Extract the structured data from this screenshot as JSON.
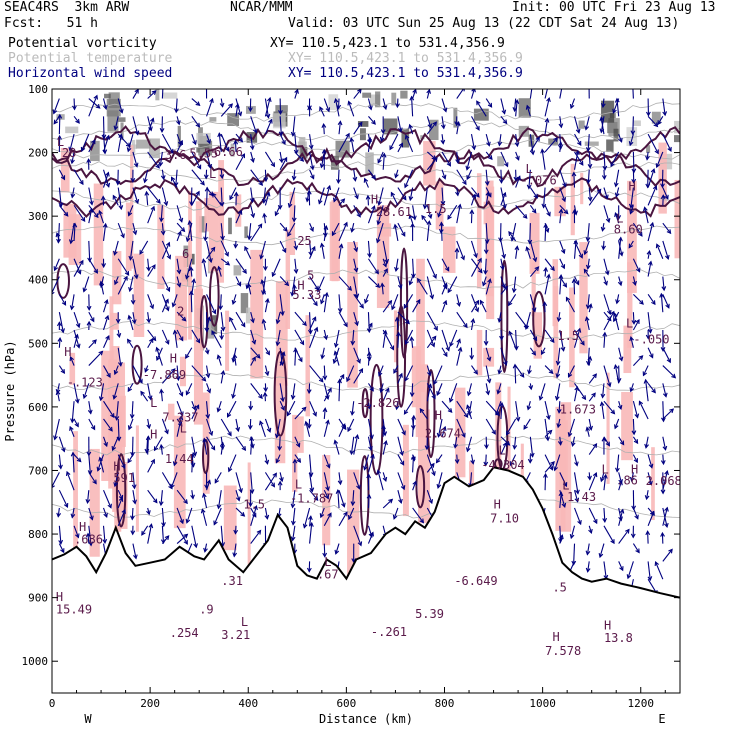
{
  "header": {
    "model": "SEAC4RS  3km ARW",
    "org": "NCAR/MMM",
    "init": "Init: 00 UTC Fri 23 Aug 13",
    "fcst": "Fcst:   51 h",
    "valid": "Valid: 03 UTC Sun 25 Aug 13 (22 CDT Sat 24 Aug 13)"
  },
  "legend": [
    {
      "name": "Potential vorticity",
      "xy": "XY= 110.5,423.1 to 531.4,356.9",
      "color": "#000000"
    },
    {
      "name": "Potential temperature",
      "xy": "XY= 110.5,423.1 to 531.4,356.9",
      "color": "#bbbbbb"
    },
    {
      "name": "Horizontal wind speed",
      "xy": "XY= 110.5,423.1 to 531.4,356.9",
      "color": "#000080"
    }
  ],
  "chart_data": {
    "type": "cross-section",
    "xlabel": "Distance (km)",
    "ylabel": "Pressure (hPa)",
    "xlim": [
      0,
      1280
    ],
    "ylim": [
      100,
      1050
    ],
    "x_ticks": [
      0,
      200,
      400,
      600,
      800,
      1000,
      1200
    ],
    "y_ticks": [
      100,
      200,
      300,
      400,
      500,
      600,
      700,
      800,
      900,
      1000
    ],
    "x_end_labels": {
      "left": "W",
      "right": "E"
    },
    "terrain": [
      [
        0,
        840
      ],
      [
        25,
        832
      ],
      [
        50,
        820
      ],
      [
        70,
        835
      ],
      [
        90,
        860
      ],
      [
        110,
        830
      ],
      [
        130,
        790
      ],
      [
        150,
        830
      ],
      [
        170,
        850
      ],
      [
        200,
        845
      ],
      [
        230,
        840
      ],
      [
        260,
        820
      ],
      [
        290,
        835
      ],
      [
        310,
        840
      ],
      [
        340,
        810
      ],
      [
        360,
        840
      ],
      [
        390,
        860
      ],
      [
        420,
        830
      ],
      [
        440,
        810
      ],
      [
        460,
        770
      ],
      [
        480,
        790
      ],
      [
        500,
        850
      ],
      [
        520,
        865
      ],
      [
        540,
        870
      ],
      [
        560,
        840
      ],
      [
        580,
        850
      ],
      [
        600,
        870
      ],
      [
        620,
        840
      ],
      [
        650,
        830
      ],
      [
        680,
        800
      ],
      [
        700,
        790
      ],
      [
        720,
        800
      ],
      [
        740,
        780
      ],
      [
        760,
        790
      ],
      [
        780,
        765
      ],
      [
        800,
        720
      ],
      [
        820,
        710
      ],
      [
        850,
        725
      ],
      [
        880,
        715
      ],
      [
        900,
        695
      ],
      [
        930,
        700
      ],
      [
        960,
        710
      ],
      [
        980,
        730
      ],
      [
        1000,
        760
      ],
      [
        1020,
        800
      ],
      [
        1040,
        845
      ],
      [
        1060,
        860
      ],
      [
        1080,
        870
      ],
      [
        1100,
        875
      ],
      [
        1130,
        870
      ],
      [
        1160,
        878
      ],
      [
        1200,
        885
      ],
      [
        1240,
        893
      ],
      [
        1280,
        900
      ]
    ],
    "annotations": [
      {
        "text": "L",
        "x": 10,
        "y": 190,
        "color": "#5a1a4a"
      },
      {
        "text": "28",
        "x": 20,
        "y": 207,
        "color": "#5a1a4a"
      },
      {
        "text": "3.6",
        "x": 230,
        "y": 210,
        "color": "#5a1a4a"
      },
      {
        "text": "5.55",
        "x": 280,
        "y": 208,
        "color": "#5a1a4a"
      },
      {
        "text": "6.66",
        "x": 330,
        "y": 205,
        "color": "#5a1a4a"
      },
      {
        "text": "L",
        "x": 320,
        "y": 240,
        "color": "#5a1a4a"
      },
      {
        "text": "H",
        "x": 650,
        "y": 280,
        "color": "#5a1a4a"
      },
      {
        "text": "28.61",
        "x": 660,
        "y": 300,
        "color": "#5a1a4a"
      },
      {
        "text": "1.5",
        "x": 760,
        "y": 295,
        "color": "#5a1a4a"
      },
      {
        "text": "L",
        "x": 965,
        "y": 232,
        "color": "#5a1a4a"
      },
      {
        "text": "-.076",
        "x": 955,
        "y": 250,
        "color": "#5a1a4a"
      },
      {
        "text": "H",
        "x": 1175,
        "y": 260,
        "color": "#5a1a4a"
      },
      {
        "text": "L",
        "x": 1150,
        "y": 310,
        "color": "#5a1a4a"
      },
      {
        "text": "8.60",
        "x": 1145,
        "y": 327,
        "color": "#5a1a4a"
      },
      {
        "text": "25",
        "x": 500,
        "y": 345,
        "color": "#5a1a4a"
      },
      {
        "text": "6",
        "x": 265,
        "y": 366,
        "color": "#5a1a4a"
      },
      {
        "text": "5",
        "x": 520,
        "y": 400,
        "color": "#5a1a4a"
      },
      {
        "text": "H",
        "x": 500,
        "y": 415,
        "color": "#5a1a4a"
      },
      {
        "text": "5.33",
        "x": 490,
        "y": 430,
        "color": "#5a1a4a"
      },
      {
        "text": "2",
        "x": 255,
        "y": 456,
        "color": "#5a1a4a"
      },
      {
        "text": "H",
        "x": 25,
        "y": 520,
        "color": "#5a1a4a"
      },
      {
        "text": "-7.869",
        "x": 185,
        "y": 556,
        "color": "#5a1a4a"
      },
      {
        "text": "-.123",
        "x": 30,
        "y": 568,
        "color": "#5a1a4a"
      },
      {
        "text": "H",
        "x": 240,
        "y": 530,
        "color": "#5a1a4a"
      },
      {
        "text": "L",
        "x": 1170,
        "y": 475,
        "color": "#5a1a4a"
      },
      {
        "text": "-.050",
        "x": 1185,
        "y": 500,
        "color": "#5a1a4a"
      },
      {
        "text": "1.5",
        "x": 1030,
        "y": 495,
        "color": "#5a1a4a"
      },
      {
        "text": "L",
        "x": 200,
        "y": 600,
        "color": "#5a1a4a"
      },
      {
        "text": "7.237",
        "x": 225,
        "y": 623,
        "color": "#5a1a4a"
      },
      {
        "text": "-2.826",
        "x": 620,
        "y": 600,
        "color": "#5a1a4a"
      },
      {
        "text": "1.673",
        "x": 1035,
        "y": 610,
        "color": "#5a1a4a"
      },
      {
        "text": "H",
        "x": 780,
        "y": 620,
        "color": "#5a1a4a"
      },
      {
        "text": "2.674",
        "x": 760,
        "y": 648,
        "color": "#5a1a4a"
      },
      {
        "text": "H",
        "x": 200,
        "y": 650,
        "color": "#5a1a4a"
      },
      {
        "text": "L",
        "x": 260,
        "y": 640,
        "color": "#5a1a4a"
      },
      {
        "text": "1.44",
        "x": 230,
        "y": 688,
        "color": "#5a1a4a"
      },
      {
        "text": "L",
        "x": 910,
        "y": 675,
        "color": "#5a1a4a"
      },
      {
        "text": "-4.304",
        "x": 875,
        "y": 698,
        "color": "#5a1a4a"
      },
      {
        "text": "H",
        "x": 125,
        "y": 700,
        "color": "#5a1a4a"
      },
      {
        "text": "591",
        "x": 125,
        "y": 718,
        "color": "#5a1a4a"
      },
      {
        "text": "L",
        "x": 1120,
        "y": 705,
        "color": "#5a1a4a"
      },
      {
        "text": "H",
        "x": 1180,
        "y": 705,
        "color": "#5a1a4a"
      },
      {
        "text": ".86",
        "x": 1150,
        "y": 722,
        "color": "#5a1a4a"
      },
      {
        "text": "2.068",
        "x": 1210,
        "y": 723,
        "color": "#5a1a4a"
      },
      {
        "text": "L",
        "x": 1040,
        "y": 730,
        "color": "#5a1a4a"
      },
      {
        "text": "1.43",
        "x": 1050,
        "y": 748,
        "color": "#5a1a4a"
      },
      {
        "text": "L",
        "x": 495,
        "y": 728,
        "color": "#5a1a4a"
      },
      {
        "text": "-1.787",
        "x": 485,
        "y": 750,
        "color": "#5a1a4a"
      },
      {
        "text": "1.5",
        "x": 390,
        "y": 760,
        "color": "#5a1a4a"
      },
      {
        "text": "H",
        "x": 900,
        "y": 760,
        "color": "#5a1a4a"
      },
      {
        "text": "7.10",
        "x": 893,
        "y": 782,
        "color": "#5a1a4a"
      },
      {
        "text": "H",
        "x": 55,
        "y": 795,
        "color": "#5a1a4a"
      },
      {
        "text": ".686",
        "x": 45,
        "y": 815,
        "color": "#5a1a4a"
      },
      {
        "text": "L",
        "x": 555,
        "y": 850,
        "color": "#5a1a4a"
      },
      {
        "text": ".67",
        "x": 540,
        "y": 870,
        "color": "#5a1a4a"
      },
      {
        "text": ".31",
        "x": 345,
        "y": 880,
        "color": "#5a1a4a"
      },
      {
        "text": "-6.649",
        "x": 820,
        "y": 880,
        "color": "#5a1a4a"
      },
      {
        "text": "H",
        "x": 8,
        "y": 905,
        "color": "#5a1a4a"
      },
      {
        "text": "15.49",
        "x": 8,
        "y": 925,
        "color": "#5a1a4a"
      },
      {
        "text": ".9",
        "x": 300,
        "y": 925,
        "color": "#5a1a4a"
      },
      {
        "text": "L",
        "x": 385,
        "y": 945,
        "color": "#5a1a4a"
      },
      {
        "text": "3.21",
        "x": 345,
        "y": 965,
        "color": "#5a1a4a"
      },
      {
        "text": ".254",
        "x": 240,
        "y": 962,
        "color": "#5a1a4a"
      },
      {
        "text": "5.39",
        "x": 740,
        "y": 932,
        "color": "#5a1a4a"
      },
      {
        "text": "-.261",
        "x": 650,
        "y": 960,
        "color": "#5a1a4a"
      },
      {
        "text": ".5",
        "x": 1020,
        "y": 890,
        "color": "#5a1a4a"
      },
      {
        "text": "H",
        "x": 1020,
        "y": 968,
        "color": "#5a1a4a"
      },
      {
        "text": "7.578",
        "x": 1005,
        "y": 990,
        "color": "#5a1a4a"
      },
      {
        "text": "13.8",
        "x": 1125,
        "y": 970,
        "color": "#5a1a4a"
      },
      {
        "text": "H",
        "x": 1125,
        "y": 950,
        "color": "#5a1a4a"
      }
    ]
  }
}
